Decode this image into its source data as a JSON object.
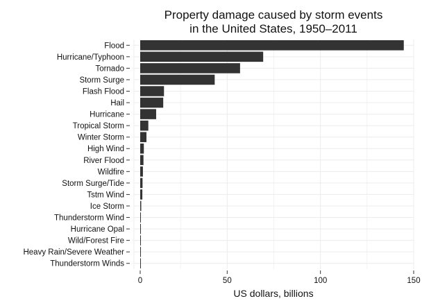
{
  "chart_data": {
    "type": "bar",
    "orientation": "horizontal",
    "title": "Property damage caused by storm events",
    "subtitle": "in the United States, 1950–2011",
    "xlabel": "US dollars, billions",
    "ylabel": "",
    "xlim": [
      0,
      150
    ],
    "xticks": [
      0,
      50,
      100,
      150
    ],
    "grid": true,
    "bar_color": "#333333",
    "grid_color": "#ececec",
    "categories": [
      "Flood",
      "Hurricane/Typhoon",
      "Tornado",
      "Storm Surge",
      "Flash Flood",
      "Hail",
      "Hurricane",
      "Tropical Storm",
      "Winter Storm",
      "High Wind",
      "River Flood",
      "Wildfire",
      "Storm Surge/Tide",
      "Tstm Wind",
      "Ice Storm",
      "Thunderstorm Wind",
      "Hurricane Opal",
      "Wild/Forest Fire",
      "Heavy Rain/Severe Weather",
      "Thunderstorm Winds"
    ],
    "values": [
      144.7,
      69.3,
      56.9,
      43.3,
      16.1,
      15.7,
      11.9,
      7.7,
      6.7,
      5.3,
      5.1,
      4.8,
      4.6,
      4.5,
      3.9,
      3.5,
      3.2,
      3.2,
      2.5,
      1.7
    ]
  }
}
